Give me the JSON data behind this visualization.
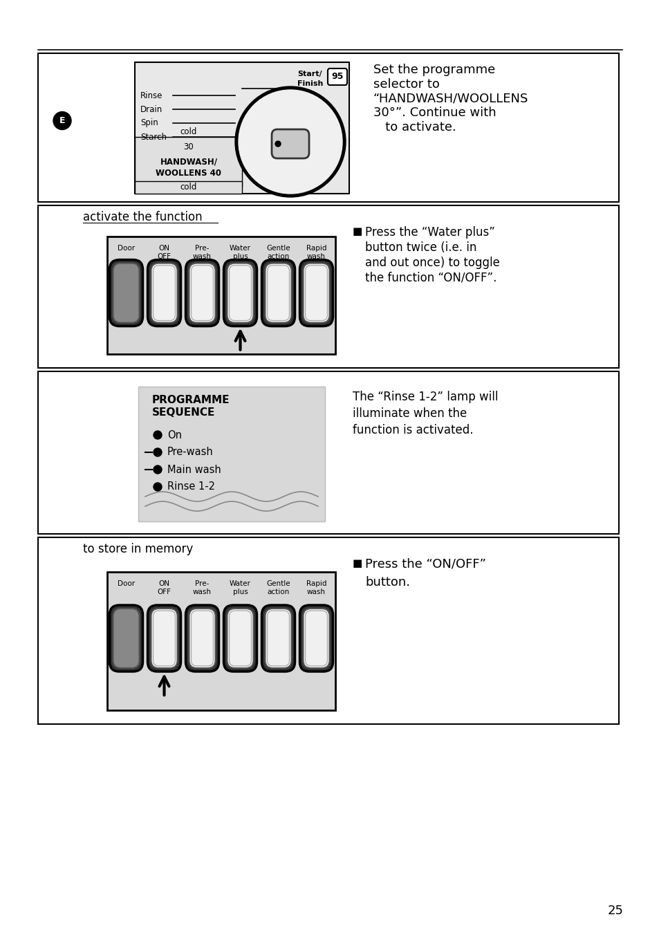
{
  "page_bg": "#ffffff",
  "outer_border_color": "#000000",
  "section_bg": "#e8e8e8",
  "section_border": "#000000",
  "button_labels_row1": [
    "Door",
    "ON\nOFF",
    "Pre-\nwash",
    "Water\nplus",
    "Gentle\naction",
    "Rapid\nwash"
  ],
  "section1": {
    "label_e": "E",
    "text": "Set the programme\nselector to\n“HANDWASH/WOOLLENS\n30°”. Continue with\n   to activate."
  },
  "section2": {
    "subtitle": "activate the function",
    "arrow_button_idx": 3,
    "text_lines": [
      "Press the “Water plus”",
      "button twice (i.e. in",
      "and out once) to toggle",
      "the function “ON/OFF”."
    ]
  },
  "section3": {
    "prog_title1": "PROGRAMME",
    "prog_title2": "SEQUENCE",
    "prog_items": [
      "On",
      "Pre-wash",
      "Main wash",
      "Rinse 1-2"
    ],
    "prog_dashes": [
      false,
      true,
      true,
      false
    ],
    "text_lines": [
      "The “Rinse 1-2” lamp will",
      "illuminate when the",
      "function is activated."
    ]
  },
  "section4": {
    "subtitle": "to store in memory",
    "arrow_button_idx": 1,
    "text_lines": [
      "Press the “ON/OFF”",
      "button."
    ]
  },
  "page_number": "25"
}
